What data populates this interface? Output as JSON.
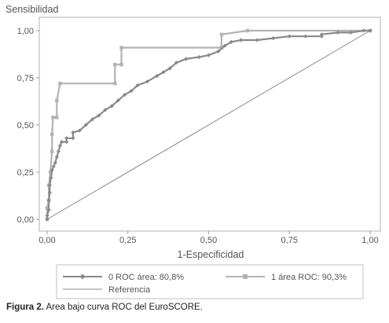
{
  "colors": {
    "series0": "#8a8a8a",
    "series1": "#b3b3b3",
    "reference": "#8a8a8a"
  },
  "caption": {
    "label": "Figura 2.",
    "text": " Area bajo curva ROC del EuroSCORE."
  },
  "chart_data": {
    "type": "line",
    "ylabel": "Sensibilidad",
    "xlabel": "1-Especificidad",
    "xlim": [
      0,
      1
    ],
    "ylim": [
      0,
      1
    ],
    "x_ticks": [
      0,
      0.25,
      0.5,
      0.75,
      1
    ],
    "x_tick_labels": [
      "0,00",
      "0,25",
      "0,50",
      "0,75",
      "1,00"
    ],
    "y_ticks": [
      0,
      0.25,
      0.5,
      0.75,
      1
    ],
    "y_tick_labels": [
      "0,00",
      "0,25",
      "0,50",
      "0,75",
      "1,00"
    ],
    "grid": false,
    "legend_position": "bottom",
    "series": [
      {
        "name": "0 ROC área: 80,8%",
        "marker": "diamond",
        "points": [
          [
            0,
            0
          ],
          [
            0,
            0.02
          ],
          [
            0.005,
            0.05
          ],
          [
            0.005,
            0.1
          ],
          [
            0.008,
            0.14
          ],
          [
            0.008,
            0.18
          ],
          [
            0.012,
            0.22
          ],
          [
            0.015,
            0.26
          ],
          [
            0.02,
            0.28
          ],
          [
            0.025,
            0.3
          ],
          [
            0.03,
            0.33
          ],
          [
            0.035,
            0.36
          ],
          [
            0.04,
            0.39
          ],
          [
            0.045,
            0.41
          ],
          [
            0.06,
            0.41
          ],
          [
            0.06,
            0.43
          ],
          [
            0.08,
            0.43
          ],
          [
            0.08,
            0.46
          ],
          [
            0.1,
            0.47
          ],
          [
            0.12,
            0.5
          ],
          [
            0.14,
            0.53
          ],
          [
            0.16,
            0.55
          ],
          [
            0.18,
            0.58
          ],
          [
            0.2,
            0.6
          ],
          [
            0.22,
            0.63
          ],
          [
            0.24,
            0.66
          ],
          [
            0.26,
            0.68
          ],
          [
            0.28,
            0.71
          ],
          [
            0.31,
            0.73
          ],
          [
            0.34,
            0.76
          ],
          [
            0.36,
            0.78
          ],
          [
            0.38,
            0.8
          ],
          [
            0.4,
            0.83
          ],
          [
            0.43,
            0.85
          ],
          [
            0.47,
            0.86
          ],
          [
            0.5,
            0.87
          ],
          [
            0.53,
            0.89
          ],
          [
            0.55,
            0.92
          ],
          [
            0.57,
            0.94
          ],
          [
            0.6,
            0.95
          ],
          [
            0.65,
            0.95
          ],
          [
            0.7,
            0.96
          ],
          [
            0.75,
            0.97
          ],
          [
            0.8,
            0.97
          ],
          [
            0.85,
            0.97
          ],
          [
            0.85,
            0.98
          ],
          [
            0.9,
            0.99
          ],
          [
            0.94,
            0.99
          ],
          [
            0.98,
            1.0
          ],
          [
            1.0,
            1.0
          ]
        ]
      },
      {
        "name": "1 área ROC: 90,3%",
        "marker": "square",
        "points": [
          [
            0,
            0
          ],
          [
            0,
            0.06
          ],
          [
            0.005,
            0.1
          ],
          [
            0.005,
            0.18
          ],
          [
            0.01,
            0.25
          ],
          [
            0.015,
            0.36
          ],
          [
            0.015,
            0.45
          ],
          [
            0.018,
            0.54
          ],
          [
            0.03,
            0.54
          ],
          [
            0.03,
            0.63
          ],
          [
            0.04,
            0.72
          ],
          [
            0.21,
            0.72
          ],
          [
            0.21,
            0.82
          ],
          [
            0.23,
            0.82
          ],
          [
            0.23,
            0.91
          ],
          [
            0.54,
            0.91
          ],
          [
            0.54,
            0.98
          ],
          [
            0.62,
            1.0
          ],
          [
            1.0,
            1.0
          ]
        ]
      },
      {
        "name": "Referencia",
        "marker": "none",
        "points": [
          [
            0,
            0
          ],
          [
            1,
            1
          ]
        ]
      }
    ]
  }
}
